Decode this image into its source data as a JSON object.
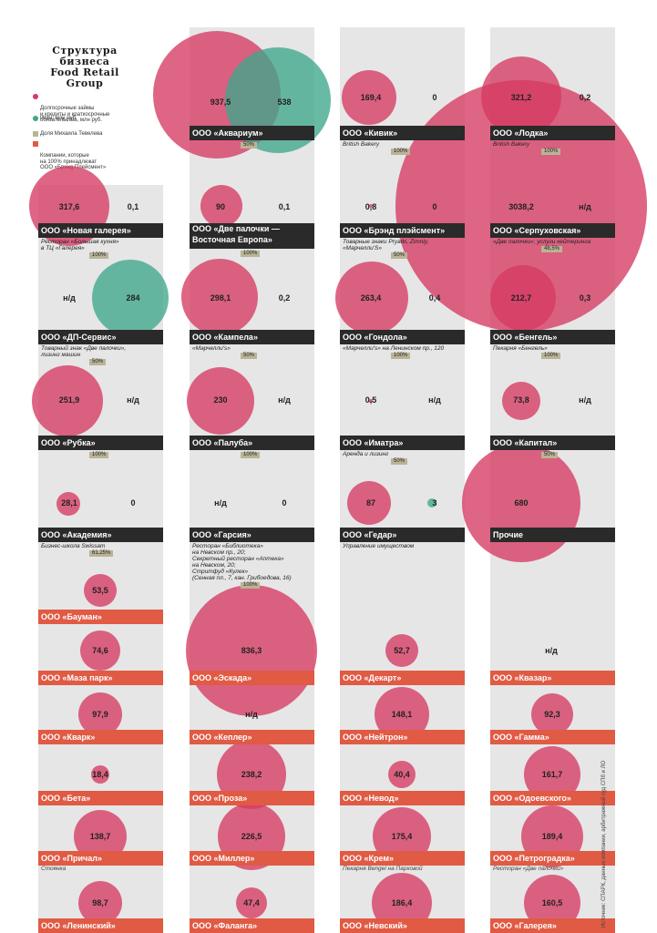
{
  "title": [
    "Структура",
    "бизнеса",
    "Food Retail",
    "Group"
  ],
  "legend": [
    {
      "label": "Долгосрочные займы\nи кредиты и краткосрочные\nобязательства, млн руб.",
      "color": "#d63a63"
    },
    {
      "label": "Иски, млн руб.",
      "color": "#3fa68a"
    },
    {
      "label": "Доля Михаила Тевелева",
      "color": "#b9b496"
    },
    {
      "label": "Компании, которые\nна 100% принадлежат\nООО «Брэнд Плейсмент»",
      "color": "#e05a44"
    }
  ],
  "colors": {
    "pink": "#d63a63",
    "teal": "#3fa68a",
    "share": "#b9b496",
    "orange": "#e05a44",
    "dark": "#2a2a2a"
  },
  "source": "Источник: СПАРК, данные компании, арбитражный суд СПб и ЛО",
  "companies": [
    {
      "name": "ООО «Аквариум»",
      "debt": "937,5",
      "claims": "538",
      "sub": "",
      "share": "50%"
    },
    {
      "name": "ООО «Кивик»",
      "debt": "169,4",
      "claims": "0",
      "sub": "British Bakery",
      "share": "100%"
    },
    {
      "name": "ООО «Лодка»",
      "debt": "321,2",
      "claims": "0,2",
      "sub": "British Bakery",
      "share": "100%"
    },
    {
      "name": "ООО «Новая галерея»",
      "debt": "317,6",
      "claims": "0,1",
      "sub": "Ресторан «Большая кухня»\nв ТЦ «Галерея»",
      "share": "100%"
    },
    {
      "name": "ООО «Две палочки —\nВосточная Европа»",
      "debt": "90",
      "claims": "0,1",
      "sub": "",
      "share": "100%"
    },
    {
      "name": "ООО «Брэнд плэйсмент»",
      "debt": "0,8",
      "claims": "0",
      "sub": "Товарные знаки Pryatki, Zimniy,\n«Марчелли'S»",
      "share": "50%"
    },
    {
      "name": "ООО «Серпуховская»",
      "debt": "3038,2",
      "claims": "н/д",
      "sub": "«Две палочки»; услуги кейтеринга",
      "share": "48,5%"
    },
    {
      "name": "ООО «ДП-Сервис»",
      "debt": "н/д",
      "claims": "284",
      "sub": "Товарный знак «Две палочки»,\nлизинг машин",
      "share": "50%"
    },
    {
      "name": "ООО «Кампела»",
      "debt": "298,1",
      "claims": "0,2",
      "sub": "«Марчелли's»",
      "share": "50%"
    },
    {
      "name": "ООО «Гондола»",
      "debt": "263,4",
      "claims": "0,4",
      "sub": "«Марчелли's» на Ленинском пр., 120",
      "share": "100%"
    },
    {
      "name": "ООО «Бенгель»",
      "debt": "212,7",
      "claims": "0,3",
      "sub": "Пекарня «Бенгель»",
      "share": "100%"
    },
    {
      "name": "ООО «Рубка»",
      "debt": "251,9",
      "claims": "н/д",
      "sub": "",
      "share": "100%"
    },
    {
      "name": "ООО «Палуба»",
      "debt": "230",
      "claims": "н/д",
      "sub": "",
      "share": "100%"
    },
    {
      "name": "ООО «Иматра»",
      "debt": "0,5",
      "claims": "н/д",
      "sub": "Аренда и лизинг",
      "share": "50%"
    },
    {
      "name": "ООО «Капитал»",
      "debt": "73,8",
      "claims": "н/д",
      "sub": "",
      "share": "50%"
    },
    {
      "name": "ООО «Академия»",
      "debt": "28,1",
      "claims": "0",
      "sub": "Бизнес-школа Swissam",
      "share": "61,25%"
    },
    {
      "name": "ООО «Гарсия»",
      "debt": "н/д",
      "claims": "0",
      "sub": "Ресторан «Библиотека»\nна Невском пр., 20;\nСекретный ресторан «Аптека»\nна Невском, 20;\nСтритфуд «Кулек»\n(Сенная пл., 7, кан. Грибоедова, 16)",
      "share": "100%"
    },
    {
      "name": "ООО «Гедар»",
      "debt": "87",
      "claims": "3",
      "sub": "Управление имуществом",
      "share": ""
    },
    {
      "name": "Прочие",
      "debt": "680",
      "claims": "",
      "sub": "",
      "share": ""
    },
    {
      "name": "ООО «Бауман»",
      "debt": "53,5",
      "claims": "",
      "sub": "",
      "share": ""
    },
    {
      "name": "ООО «Маза парк»",
      "debt": "74,6",
      "claims": "",
      "sub": "",
      "share": ""
    },
    {
      "name": "ООО «Эскада»",
      "debt": "836,3",
      "claims": "",
      "sub": "",
      "share": ""
    },
    {
      "name": "ООО «Декарт»",
      "debt": "52,7",
      "claims": "",
      "sub": "",
      "share": ""
    },
    {
      "name": "ООО «Квазар»",
      "debt": "н/д",
      "claims": "",
      "sub": "",
      "share": ""
    },
    {
      "name": "ООО «Кварк»",
      "debt": "97,9",
      "claims": "",
      "sub": "",
      "share": ""
    },
    {
      "name": "ООО «Кеплер»",
      "debt": "н/д",
      "claims": "",
      "sub": "",
      "share": ""
    },
    {
      "name": "ООО «Нейтрон»",
      "debt": "148,1",
      "claims": "",
      "sub": "",
      "share": ""
    },
    {
      "name": "ООО «Гамма»",
      "debt": "92,3",
      "claims": "",
      "sub": "",
      "share": ""
    },
    {
      "name": "ООО «Бета»",
      "debt": "18,4",
      "claims": "",
      "sub": "",
      "share": ""
    },
    {
      "name": "ООО «Проза»",
      "debt": "238,2",
      "claims": "",
      "sub": "",
      "share": ""
    },
    {
      "name": "ООО «Невод»",
      "debt": "40,4",
      "claims": "",
      "sub": "",
      "share": ""
    },
    {
      "name": "ООО «Одоевского»",
      "debt": "161,7",
      "claims": "",
      "sub": "",
      "share": ""
    },
    {
      "name": "ООО «Причал»",
      "debt": "138,7",
      "claims": "",
      "sub": "Стоянка",
      "share": ""
    },
    {
      "name": "ООО «Миллер»",
      "debt": "226,5",
      "claims": "",
      "sub": "",
      "share": ""
    },
    {
      "name": "ООО «Крем»",
      "debt": "175,4",
      "claims": "",
      "sub": "Пекарня Bengel на Парковой",
      "share": ""
    },
    {
      "name": "ООО «Петроградка»",
      "debt": "189,4",
      "claims": "",
      "sub": "Ресторан «Две палочки»",
      "share": ""
    },
    {
      "name": "ООО «Ленинский»",
      "debt": "98,7",
      "claims": "",
      "sub": "",
      "share": ""
    },
    {
      "name": "ООО «Фаланга»",
      "debt": "47,4",
      "claims": "",
      "sub": "",
      "share": ""
    },
    {
      "name": "ООО «Невский»",
      "debt": "186,4",
      "claims": "",
      "sub": "",
      "share": ""
    },
    {
      "name": "ООО «Галерея»",
      "debt": "160,5",
      "claims": "",
      "sub": "",
      "share": ""
    }
  ]
}
